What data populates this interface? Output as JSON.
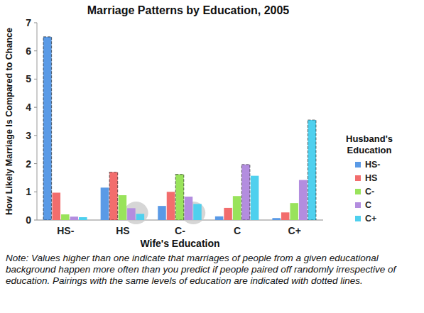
{
  "chart_data": {
    "type": "bar",
    "title": "Marriage Patterns by Education, 2005",
    "x_label": "Wife's Education",
    "y_label": "How Likely Marriage Is Compared to Chance",
    "legend_title": "Husband's Education",
    "note": "Note: Values higher than one indicate that marriages of people from a given educational background happen more often than you predict if people paired off randomly irrespective of education. Pairings with the same levels of education are indicated with dotted lines.",
    "categories": [
      "HS-",
      "HS",
      "C-",
      "C",
      "C+"
    ],
    "series": [
      {
        "name": "HS-",
        "color": "#5a9ae6",
        "values": [
          6.5,
          1.15,
          0.5,
          0.13,
          0.07
        ]
      },
      {
        "name": "HS",
        "color": "#f26d6d",
        "values": [
          0.97,
          1.7,
          1.0,
          0.43,
          0.27
        ]
      },
      {
        "name": "C-",
        "color": "#99e35b",
        "values": [
          0.2,
          0.88,
          1.62,
          0.85,
          0.6
        ]
      },
      {
        "name": "C",
        "color": "#b38ddf",
        "values": [
          0.12,
          0.42,
          0.83,
          1.97,
          1.42
        ]
      },
      {
        "name": "C+",
        "color": "#4fd0ee",
        "values": [
          0.1,
          0.22,
          0.57,
          1.57,
          3.55
        ]
      }
    ],
    "ylim": [
      0,
      7
    ],
    "yticks": [
      0,
      1,
      2,
      3,
      4,
      5,
      6,
      7
    ],
    "grid": false,
    "legend": "right"
  }
}
